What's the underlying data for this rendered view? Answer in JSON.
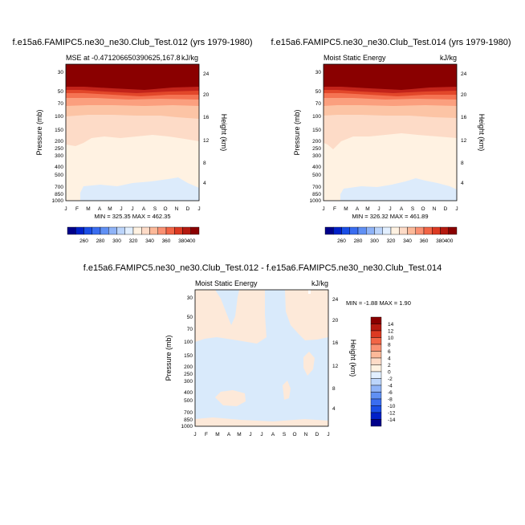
{
  "chart_data": [
    {
      "type": "contour",
      "title": "f.e15a6.FAMIPC5.ne30_ne30.Club_Test.012 (yrs 1979-1980)",
      "subtitle_left": "MSE at -0.471206650390625,167.8",
      "subtitle_right": "kJ/kg",
      "ylabel": "Pressure (mb)",
      "ylabel_right": "Height (km)",
      "months": [
        "J",
        "F",
        "M",
        "A",
        "M",
        "J",
        "J",
        "A",
        "S",
        "O",
        "N",
        "D",
        "J"
      ],
      "pressure_ticks": [
        "30",
        "50",
        "70",
        "100",
        "150",
        "200",
        "250",
        "300",
        "400",
        "500",
        "700",
        "850",
        "1000"
      ],
      "height_ticks": [
        "24",
        "20",
        "16",
        "12",
        "8",
        "4"
      ],
      "stats": "MIN = 325.35 MAX = 462.35",
      "colorbar_labels": [
        "260",
        "280",
        "300",
        "320",
        "340",
        "360",
        "380",
        "400"
      ]
    },
    {
      "type": "contour",
      "title": "f.e15a6.FAMIPC5.ne30_ne30.Club_Test.014 (yrs 1979-1980)",
      "subtitle_left": "Moist Static Energy",
      "subtitle_right": "kJ/kg",
      "ylabel": "Pressure (mb)",
      "ylabel_right": "Height (km)",
      "months": [
        "J",
        "F",
        "M",
        "A",
        "M",
        "J",
        "J",
        "A",
        "S",
        "O",
        "N",
        "D",
        "J"
      ],
      "pressure_ticks": [
        "30",
        "50",
        "70",
        "100",
        "150",
        "200",
        "250",
        "300",
        "400",
        "500",
        "700",
        "850",
        "1000"
      ],
      "height_ticks": [
        "24",
        "20",
        "16",
        "12",
        "8",
        "4"
      ],
      "stats": "MIN = 326.32 MAX = 461.89",
      "colorbar_labels": [
        "260",
        "280",
        "300",
        "320",
        "340",
        "360",
        "380",
        "400"
      ]
    },
    {
      "type": "contour",
      "title": "f.e15a6.FAMIPC5.ne30_ne30.Club_Test.012 - f.e15a6.FAMIPC5.ne30_ne30.Club_Test.014",
      "subtitle_left": "Moist Static Energy",
      "subtitle_right": "kJ/kg",
      "ylabel": "Pressure (mb)",
      "ylabel_right": "Height (km)",
      "months": [
        "J",
        "F",
        "M",
        "A",
        "M",
        "J",
        "J",
        "A",
        "S",
        "O",
        "N",
        "D",
        "J"
      ],
      "pressure_ticks": [
        "30",
        "50",
        "70",
        "100",
        "150",
        "200",
        "250",
        "300",
        "400",
        "500",
        "700",
        "850",
        "1000"
      ],
      "height_ticks": [
        "24",
        "20",
        "16",
        "12",
        "8",
        "4"
      ],
      "stats": "MIN =  -1.88 MAX =   1.90",
      "colorbar_labels": [
        "14",
        "12",
        "10",
        "8",
        "6",
        "4",
        "2",
        "0",
        "-2",
        "-4",
        "-6",
        "-8",
        "-10",
        "-12",
        "-14"
      ]
    }
  ],
  "colors": {
    "mse_scale": [
      "#00008a",
      "#0020c8",
      "#1a4ee6",
      "#3a6df0",
      "#6090f4",
      "#8fb3f7",
      "#bcd5fb",
      "#e2efff",
      "#fff2e2",
      "#fddbc7",
      "#fcb999",
      "#fa9173",
      "#f26546",
      "#dc3a22",
      "#b51a10",
      "#8a0000"
    ],
    "diff_scale": [
      "#8a0000",
      "#b51a10",
      "#dc3a22",
      "#f26546",
      "#fa9173",
      "#fcb999",
      "#fddbc7",
      "#fff2e2",
      "#e2efff",
      "#bcd5fb",
      "#8fb3f7",
      "#6090f4",
      "#3a6df0",
      "#1a4ee6",
      "#0020c8",
      "#00008a"
    ],
    "diff_pos": "#fde9d9",
    "diff_neg": "#d9eafb"
  }
}
